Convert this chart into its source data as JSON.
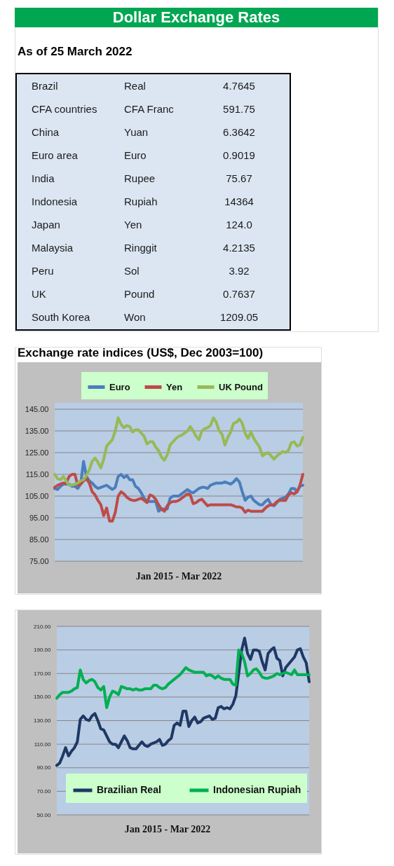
{
  "chart_data": [
    {
      "type": "other",
      "title": "Dollar Exchange Rates",
      "subtitle": "As of 25 March 2022",
      "categories": [
        "Brazil",
        "CFA countries",
        "China",
        "Euro area",
        "India",
        "Indonesia",
        "Japan",
        "Malaysia",
        "Peru",
        "UK",
        "South Korea"
      ],
      "y2_categories": [
        "Real",
        "CFA Franc",
        "Yuan",
        "Euro",
        "Rupee",
        "Rupiah",
        "Yen",
        "Ringgit",
        "Sol",
        "Pound",
        "Won"
      ],
      "values": [
        4.7645,
        591.75,
        6.3642,
        0.9019,
        75.67,
        14364,
        124,
        4.2135,
        3.92,
        0.7637,
        1209.05
      ],
      "value_labels": [
        "4.7645",
        "591.75",
        "6.3642",
        "0.9019",
        "75.67",
        "14364",
        "124.0",
        "4.2135",
        "3.92",
        "0.7637",
        "1209.05"
      ]
    },
    {
      "type": "line",
      "title": "Exchange rate indices (US$, Dec 2003=100)",
      "xlabel": "Jan 2015 - Mar 2022",
      "categories": [
        null,
        null,
        null,
        null,
        null,
        null,
        null,
        null,
        null,
        null,
        null,
        null,
        null,
        null,
        null,
        null,
        null,
        null,
        null,
        null,
        null,
        null,
        null,
        null,
        null,
        null,
        null,
        null,
        null,
        null,
        null,
        null,
        null,
        null,
        null,
        null,
        null,
        null,
        null,
        null,
        null,
        null,
        null,
        null,
        null,
        null,
        null,
        null,
        null,
        null,
        null,
        null,
        null,
        null,
        null,
        null,
        null,
        null,
        null,
        null,
        null,
        null,
        null,
        null,
        null,
        null,
        null,
        null,
        null,
        null,
        null,
        null,
        null,
        null,
        null,
        null,
        null,
        null,
        null,
        null,
        null,
        null,
        null,
        null,
        null,
        null,
        null
      ],
      "series": [
        {
          "name": "Euro",
          "color": "#4a7ebb",
          "values": [
            108.5,
            108,
            109.5,
            110.5,
            110.5,
            110.5,
            109.5,
            109.5,
            108.5,
            110.5,
            121,
            114,
            112,
            111,
            109.5,
            108.5,
            109,
            109.5,
            110,
            109,
            108,
            109,
            114,
            115,
            113.5,
            114.5,
            112.5,
            112.5,
            109.5,
            108.5,
            106.5,
            104,
            102.5,
            102.5,
            102.5,
            102.5,
            98,
            99,
            99,
            99,
            104,
            105,
            105,
            105,
            106,
            107,
            108,
            107,
            106.5,
            107.5,
            108.5,
            109,
            109,
            108.5,
            110,
            110.5,
            111,
            111,
            111,
            111.5,
            111,
            110.5,
            111.5,
            113,
            111.5,
            107,
            103,
            104.5,
            105,
            103,
            102,
            101,
            101,
            102.5,
            103.5,
            101,
            100.5,
            102,
            103.5,
            104,
            104.5,
            106,
            108.5,
            108.5,
            107,
            109.5,
            110
          ]
        },
        {
          "name": "Yen",
          "color": "#be4b48",
          "values": [
            109,
            110,
            110.5,
            111,
            111,
            114,
            115,
            115,
            110,
            110.5,
            112,
            113,
            111,
            107,
            105.5,
            103,
            101,
            96,
            99.5,
            93.5,
            93.5,
            97.5,
            105,
            107,
            106,
            104.5,
            103.5,
            103,
            103,
            103.5,
            104,
            103,
            102,
            105.5,
            105,
            103.5,
            101,
            99,
            98,
            100.5,
            102,
            102.5,
            102.5,
            103,
            104,
            105,
            106,
            105.5,
            101.5,
            102,
            103,
            103.5,
            102,
            100.5,
            101,
            101,
            101,
            101,
            101,
            101,
            101,
            101,
            100.5,
            100,
            100,
            99.5,
            97.5,
            98.5,
            98,
            98,
            98,
            98,
            98,
            99.5,
            100.5,
            101,
            101,
            102.5,
            103,
            103,
            103,
            105.5,
            106.5,
            106,
            107,
            110,
            115
          ]
        },
        {
          "name": "UK Pound",
          "color": "#98b954",
          "values": [
            115,
            113,
            112.5,
            114,
            112,
            110,
            110,
            110.5,
            111,
            112,
            112.5,
            114.5,
            117,
            121,
            122.5,
            120.5,
            118,
            122,
            128,
            129.5,
            131,
            135,
            141,
            138,
            136.5,
            137.5,
            137,
            134.5,
            135.5,
            135.5,
            134,
            132.5,
            129,
            130,
            130,
            127.5,
            126,
            123,
            121.5,
            124,
            128.5,
            130,
            131.5,
            132.5,
            133,
            134,
            135,
            137,
            135,
            132.5,
            131,
            135,
            136,
            136.5,
            137.5,
            141,
            139,
            135,
            133.5,
            128.5,
            132,
            134.5,
            138.5,
            139,
            140.5,
            138.5,
            134,
            131.5,
            134.5,
            131.5,
            129.5,
            127.5,
            123.5,
            124.5,
            125,
            123.5,
            122,
            123.5,
            124.5,
            125.5,
            125,
            126,
            129.5,
            130,
            128,
            128.5,
            132
          ]
        }
      ],
      "ylim": [
        75,
        145
      ],
      "yticks": [
        {
          "value": 75,
          "label": "75.00"
        },
        {
          "value": 85,
          "label": "85.00"
        },
        {
          "value": 95,
          "label": "95.00"
        },
        {
          "value": 105,
          "label": "105.00"
        },
        {
          "value": 115,
          "label": "115.00"
        },
        {
          "value": 125,
          "label": "125.00"
        },
        {
          "value": 135,
          "label": "135.00"
        },
        {
          "value": 145,
          "label": "145.00"
        }
      ],
      "grid": "y",
      "legend": "top",
      "tick_labels": "y"
    },
    {
      "type": "line",
      "xlabel": "Jan 2015 - Mar 2022",
      "categories": [
        null,
        null,
        null,
        null,
        null,
        null,
        null,
        null,
        null,
        null,
        null,
        null,
        null,
        null,
        null,
        null,
        null,
        null,
        null,
        null,
        null,
        null,
        null,
        null,
        null,
        null,
        null,
        null,
        null,
        null,
        null,
        null,
        null,
        null,
        null,
        null,
        null,
        null,
        null,
        null,
        null,
        null,
        null,
        null,
        null,
        null,
        null,
        null,
        null,
        null,
        null,
        null,
        null,
        null,
        null,
        null,
        null,
        null,
        null,
        null,
        null,
        null,
        null,
        null,
        null,
        null,
        null,
        null,
        null,
        null,
        null,
        null,
        null,
        null,
        null,
        null,
        null,
        null,
        null,
        null,
        null,
        null,
        null,
        null,
        null,
        null,
        null
      ],
      "series": [
        {
          "name": "Brazilian Real",
          "color": "#1f3864",
          "values": [
            92,
            94,
            100,
            107,
            100,
            104,
            107,
            112,
            131,
            134,
            131,
            130,
            134,
            136,
            130,
            123,
            122,
            117,
            112,
            110,
            110,
            107,
            112,
            117,
            113,
            107,
            106,
            106,
            109,
            112,
            109,
            108,
            110,
            111,
            112,
            114,
            109,
            110,
            113,
            115,
            126,
            128,
            126,
            138,
            138,
            125,
            130,
            133,
            128,
            129,
            132,
            133,
            134,
            131,
            132,
            141,
            142,
            140,
            141,
            140,
            144,
            151,
            170,
            190,
            200,
            187,
            182,
            190,
            190,
            189,
            180,
            173,
            187,
            190,
            192,
            183,
            181,
            168,
            175,
            178,
            181,
            184,
            190,
            191,
            184,
            179,
            163
          ]
        },
        {
          "name": "Indonesian Rupiah",
          "color": "#00b050",
          "values": [
            149,
            152,
            154,
            154,
            154,
            155,
            157,
            158,
            173,
            165,
            162,
            164,
            165,
            163,
            158,
            156,
            159,
            141,
            150,
            155,
            154,
            152,
            159,
            158,
            157,
            157,
            156,
            157,
            156,
            156,
            157,
            157,
            157,
            160,
            160,
            158,
            157,
            158,
            161,
            163,
            165,
            167,
            169,
            172,
            175,
            173,
            172,
            171,
            171,
            171,
            171,
            168,
            169,
            168,
            166,
            168,
            166,
            165,
            165,
            165,
            161,
            160,
            190,
            187,
            180,
            168,
            170,
            173,
            174,
            171,
            167,
            166,
            166,
            167,
            168,
            170,
            169,
            170,
            171,
            170,
            169,
            173,
            169,
            169,
            169,
            169,
            169
          ]
        }
      ],
      "ylim": [
        50,
        210
      ],
      "yticks": [
        {
          "value": 50,
          "label": "50.00"
        },
        {
          "value": 70,
          "label": "70.00"
        },
        {
          "value": 90,
          "label": "90.00"
        },
        {
          "value": 110,
          "label": "110.00"
        },
        {
          "value": 130,
          "label": "130.00"
        },
        {
          "value": 150,
          "label": "150.00"
        },
        {
          "value": 170,
          "label": "170.00"
        },
        {
          "value": 190,
          "label": "190.00"
        },
        {
          "value": 210,
          "label": "210.00"
        }
      ],
      "grid": "y",
      "legend": "bottom",
      "tick_labels": "y"
    }
  ]
}
